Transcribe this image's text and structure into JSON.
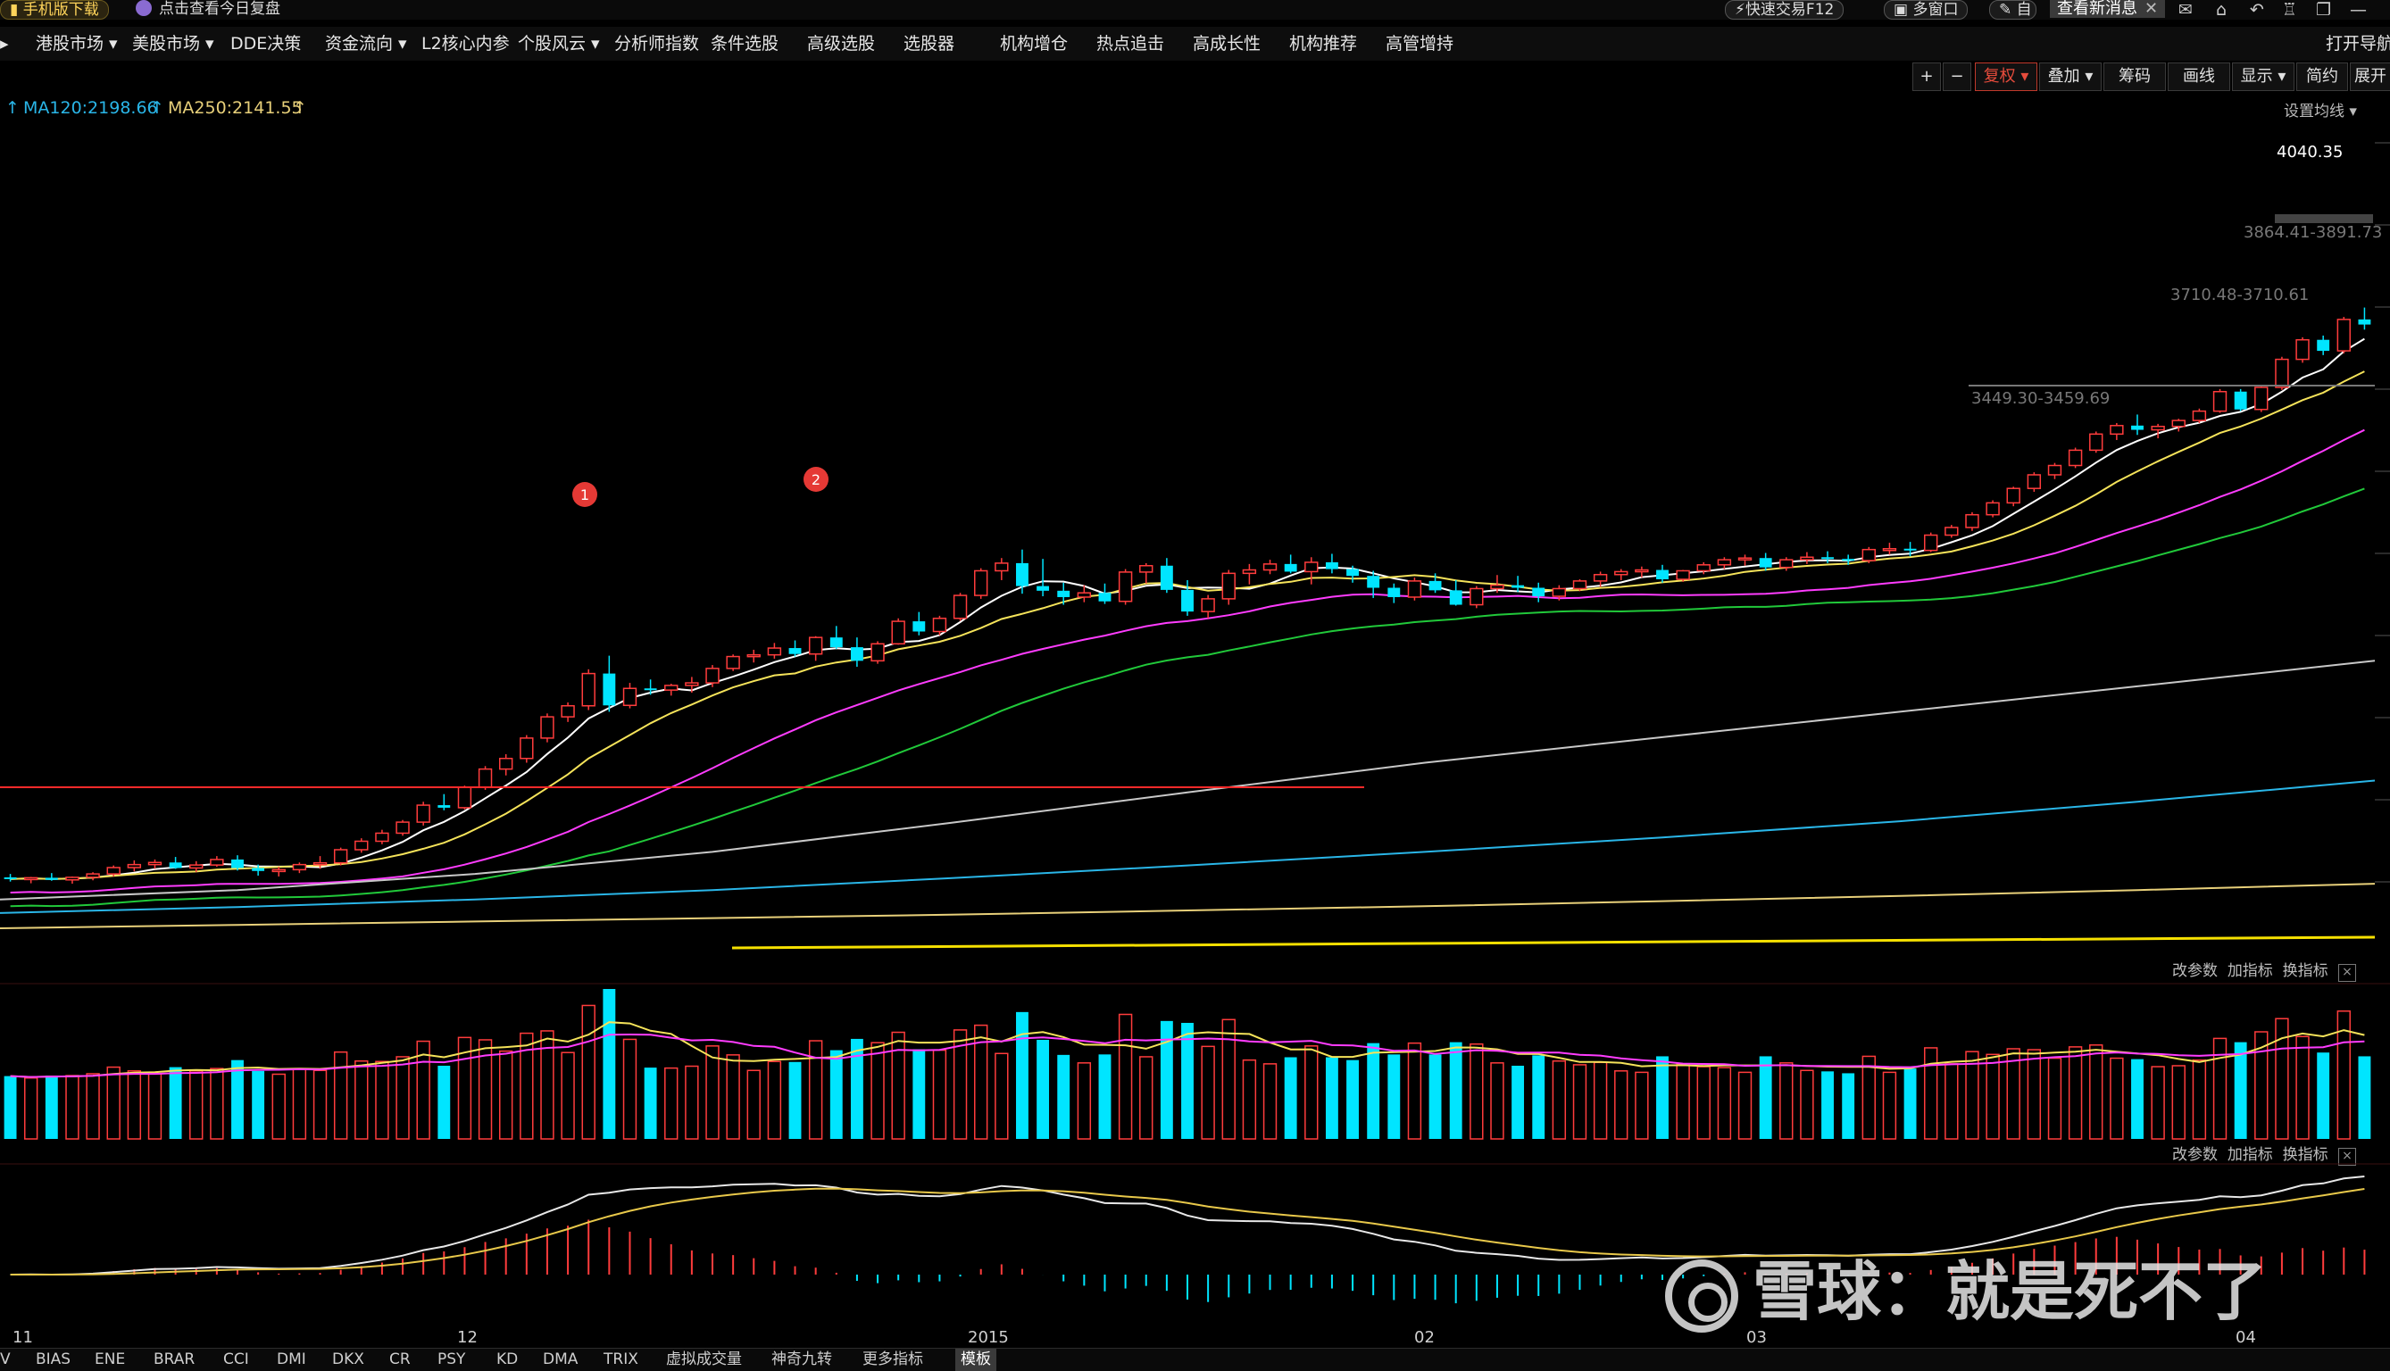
{
  "topbar": {
    "download": "手机版下载",
    "review": "点击查看今日复盘",
    "quick_trade": "快速交易F12",
    "multi_window": "多窗口",
    "self_label": "自",
    "new_msg": "查看新消息"
  },
  "menu": {
    "items": [
      "港股市场",
      "美股市场",
      "DDE决策",
      "资金流向",
      "L2核心内参",
      "个股风云",
      "分析师指数",
      "条件选股",
      "高级选股",
      "选股器",
      "机构增仓",
      "热点追击",
      "高成长性",
      "机构推荐",
      "高管增持"
    ],
    "right": "打开导航"
  },
  "toolbar": {
    "plus": "+",
    "minus": "−",
    "fuquan": "复权",
    "overlay": "叠加",
    "chips": "筹码",
    "draw": "画线",
    "display": "显示",
    "simple": "简约",
    "expand": "展开",
    "set_ma": "设置均线"
  },
  "ma_legend": {
    "ma120": "MA120:2198.66",
    "ma250": "MA250:2141.55"
  },
  "annotations": {
    "marker1": "1",
    "marker2": "2",
    "high_price": "4040.35",
    "zone1": "3864.41-3891.73",
    "zone2": "3710.48-3710.61",
    "zone3": "3449.30-3459.69"
  },
  "panel_tools": {
    "params": "改参数",
    "add": "加指标",
    "switch": "换指标",
    "close": "×"
  },
  "x_axis_labels": [
    "11",
    "12",
    "2015",
    "02",
    "03",
    "04"
  ],
  "bottom_tabs": [
    "V",
    "BIAS",
    "ENE",
    "BRAR",
    "CCI",
    "DMI",
    "DKX",
    "CR",
    "PSY",
    "KD",
    "DMA",
    "TRIX",
    "虚拟成交量",
    "神奇九转",
    "更多指标",
    "模板"
  ],
  "watermark": {
    "text": "雪球：就是死不了"
  },
  "colors": {
    "up": "#ff3c3c",
    "down": "#00e5ff",
    "ma5": "#ffffff",
    "ma10": "#f5e35a",
    "ma20": "#ff3cff",
    "ma30": "#21c93a",
    "ma60": "#c8c8c8",
    "ma120": "#2ab6e8",
    "ma250": "#e8d07a"
  },
  "chart_data": {
    "type": "candlestick",
    "title": "",
    "ylim": [
      2250,
      4100
    ],
    "candles": [
      [
        2370,
        2378,
        2360,
        2366
      ],
      [
        2366,
        2371,
        2356,
        2369
      ],
      [
        2369,
        2380,
        2362,
        2364
      ],
      [
        2364,
        2372,
        2355,
        2370
      ],
      [
        2370,
        2382,
        2363,
        2378
      ],
      [
        2378,
        2398,
        2372,
        2393
      ],
      [
        2393,
        2410,
        2384,
        2400
      ],
      [
        2400,
        2412,
        2390,
        2405
      ],
      [
        2405,
        2418,
        2390,
        2392
      ],
      [
        2392,
        2408,
        2382,
        2399
      ],
      [
        2399,
        2420,
        2395,
        2412
      ],
      [
        2412,
        2422,
        2386,
        2392
      ],
      [
        2392,
        2400,
        2374,
        2385
      ],
      [
        2385,
        2395,
        2372,
        2388
      ],
      [
        2388,
        2405,
        2380,
        2400
      ],
      [
        2400,
        2420,
        2390,
        2404
      ],
      [
        2404,
        2440,
        2398,
        2435
      ],
      [
        2435,
        2462,
        2428,
        2455
      ],
      [
        2455,
        2482,
        2448,
        2474
      ],
      [
        2474,
        2505,
        2468,
        2500
      ],
      [
        2500,
        2548,
        2492,
        2540
      ],
      [
        2540,
        2566,
        2528,
        2534
      ],
      [
        2534,
        2586,
        2530,
        2582
      ],
      [
        2582,
        2632,
        2576,
        2625
      ],
      [
        2625,
        2660,
        2610,
        2650
      ],
      [
        2650,
        2705,
        2640,
        2698
      ],
      [
        2698,
        2756,
        2688,
        2748
      ],
      [
        2748,
        2782,
        2736,
        2774
      ],
      [
        2774,
        2860,
        2764,
        2850
      ],
      [
        2850,
        2892,
        2760,
        2775
      ],
      [
        2775,
        2828,
        2768,
        2815
      ],
      [
        2815,
        2836,
        2800,
        2811
      ],
      [
        2811,
        2826,
        2798,
        2822
      ],
      [
        2822,
        2842,
        2805,
        2828
      ],
      [
        2828,
        2870,
        2818,
        2862
      ],
      [
        2862,
        2895,
        2856,
        2890
      ],
      [
        2890,
        2906,
        2876,
        2894
      ],
      [
        2894,
        2922,
        2885,
        2910
      ],
      [
        2910,
        2928,
        2890,
        2896
      ],
      [
        2896,
        2938,
        2880,
        2935
      ],
      [
        2935,
        2962,
        2908,
        2912
      ],
      [
        2912,
        2935,
        2866,
        2880
      ],
      [
        2880,
        2926,
        2873,
        2920
      ],
      [
        2920,
        2980,
        2918,
        2973
      ],
      [
        2973,
        2995,
        2940,
        2949
      ],
      [
        2949,
        2986,
        2940,
        2980
      ],
      [
        2980,
        3040,
        2974,
        3034
      ],
      [
        3034,
        3098,
        3026,
        3092
      ],
      [
        3092,
        3122,
        3070,
        3110
      ],
      [
        3110,
        3142,
        3038,
        3056
      ],
      [
        3056,
        3120,
        3032,
        3045
      ],
      [
        3045,
        3064,
        3012,
        3030
      ],
      [
        3030,
        3058,
        3018,
        3040
      ],
      [
        3040,
        3062,
        3014,
        3020
      ],
      [
        3020,
        3096,
        3012,
        3089
      ],
      [
        3089,
        3110,
        3062,
        3104
      ],
      [
        3104,
        3122,
        3040,
        3047
      ],
      [
        3047,
        3070,
        2986,
        2996
      ],
      [
        2996,
        3035,
        2980,
        3026
      ],
      [
        3026,
        3094,
        3012,
        3086
      ],
      [
        3086,
        3108,
        3060,
        3094
      ],
      [
        3094,
        3118,
        3084,
        3108
      ],
      [
        3108,
        3130,
        3086,
        3090
      ],
      [
        3090,
        3124,
        3060,
        3112
      ],
      [
        3112,
        3132,
        3086,
        3096
      ],
      [
        3096,
        3104,
        3064,
        3080
      ],
      [
        3080,
        3092,
        3028,
        3052
      ],
      [
        3052,
        3062,
        3016,
        3030
      ],
      [
        3030,
        3076,
        3022,
        3068
      ],
      [
        3068,
        3086,
        3040,
        3046
      ],
      [
        3046,
        3070,
        3010,
        3012
      ],
      [
        3012,
        3056,
        3004,
        3050
      ],
      [
        3050,
        3082,
        3040,
        3058
      ],
      [
        3058,
        3080,
        3042,
        3052
      ],
      [
        3052,
        3064,
        3018,
        3032
      ],
      [
        3032,
        3058,
        3022,
        3050
      ],
      [
        3050,
        3072,
        3044,
        3068
      ],
      [
        3068,
        3090,
        3054,
        3083
      ],
      [
        3083,
        3096,
        3070,
        3090
      ],
      [
        3090,
        3102,
        3076,
        3094
      ],
      [
        3094,
        3106,
        3064,
        3072
      ],
      [
        3072,
        3094,
        3066,
        3092
      ],
      [
        3092,
        3112,
        3084,
        3106
      ],
      [
        3106,
        3124,
        3096,
        3118
      ],
      [
        3118,
        3130,
        3104,
        3122
      ],
      [
        3122,
        3134,
        3092,
        3100
      ],
      [
        3100,
        3124,
        3092,
        3118
      ],
      [
        3118,
        3136,
        3108,
        3124
      ],
      [
        3124,
        3138,
        3110,
        3120
      ],
      [
        3120,
        3130,
        3106,
        3116
      ],
      [
        3116,
        3148,
        3110,
        3142
      ],
      [
        3142,
        3158,
        3130,
        3144
      ],
      [
        3144,
        3160,
        3126,
        3140
      ],
      [
        3140,
        3182,
        3136,
        3176
      ],
      [
        3176,
        3200,
        3170,
        3194
      ],
      [
        3194,
        3230,
        3186,
        3224
      ],
      [
        3224,
        3258,
        3218,
        3252
      ],
      [
        3252,
        3290,
        3244,
        3286
      ],
      [
        3286,
        3324,
        3278,
        3318
      ],
      [
        3318,
        3346,
        3308,
        3340
      ],
      [
        3340,
        3382,
        3334,
        3376
      ],
      [
        3376,
        3420,
        3370,
        3414
      ],
      [
        3414,
        3440,
        3400,
        3434
      ],
      [
        3434,
        3460,
        3412,
        3424
      ],
      [
        3424,
        3438,
        3404,
        3432
      ],
      [
        3432,
        3450,
        3420,
        3446
      ],
      [
        3446,
        3474,
        3440,
        3468
      ],
      [
        3468,
        3520,
        3464,
        3514
      ],
      [
        3514,
        3520,
        3468,
        3472
      ],
      [
        3472,
        3530,
        3466,
        3524
      ],
      [
        3524,
        3596,
        3518,
        3590
      ],
      [
        3590,
        3642,
        3582,
        3636
      ],
      [
        3636,
        3646,
        3600,
        3610
      ],
      [
        3610,
        3690,
        3604,
        3684
      ],
      [
        3684,
        3712,
        3660,
        3672
      ]
    ],
    "ma_lines": [
      {
        "color_key": "ma250",
        "points": [
          [
            0,
            2250
          ],
          [
            1,
            2258
          ],
          [
            2,
            2266
          ],
          [
            3,
            2274
          ],
          [
            4,
            2282
          ],
          [
            5,
            2292
          ],
          [
            6,
            2302
          ],
          [
            7,
            2314
          ],
          [
            8,
            2326
          ],
          [
            9,
            2340
          ],
          [
            10,
            2355
          ]
        ]
      },
      {
        "color_key": "ma120",
        "points": [
          [
            0,
            2286
          ],
          [
            1,
            2300
          ],
          [
            2,
            2318
          ],
          [
            3,
            2340
          ],
          [
            4,
            2368
          ],
          [
            5,
            2398
          ],
          [
            6,
            2430
          ],
          [
            7,
            2464
          ],
          [
            8,
            2502
          ],
          [
            9,
            2548
          ],
          [
            10,
            2598
          ]
        ]
      },
      {
        "color_key": "ma60",
        "points": [
          [
            0,
            2318
          ],
          [
            1,
            2340
          ],
          [
            2,
            2378
          ],
          [
            3,
            2430
          ],
          [
            4,
            2498
          ],
          [
            5,
            2570
          ],
          [
            6,
            2640
          ],
          [
            7,
            2700
          ],
          [
            8,
            2760
          ],
          [
            9,
            2820
          ],
          [
            10,
            2880
          ]
        ]
      }
    ]
  }
}
